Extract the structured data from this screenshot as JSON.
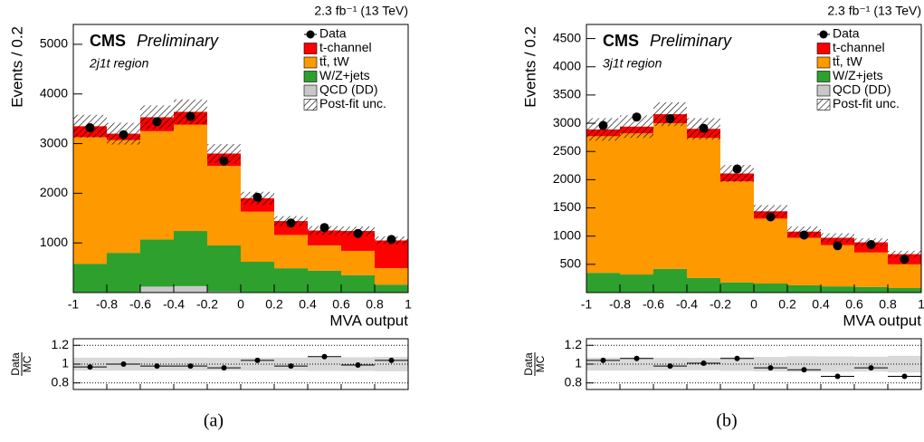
{
  "chart_data": [
    {
      "type": "histogram",
      "lumi": "2.3 fb⁻¹ (13 TeV)",
      "experiment": "CMS",
      "status": "Preliminary",
      "region": "2j1t region",
      "ylabel": "Events / 0.2",
      "xlabel": "MVA output",
      "caption": "(a)",
      "ratio_label": {
        "numerator": "Data",
        "denominator": "MC"
      },
      "bins": [
        -1,
        -0.8,
        -0.6,
        -0.4,
        -0.2,
        0,
        0.2,
        0.4,
        0.6,
        0.8,
        1
      ],
      "series": [
        {
          "name": "QCD (DD)",
          "color": "#c8c8c8",
          "values": [
            10,
            10,
            120,
            130,
            20,
            10,
            5,
            5,
            5,
            0
          ]
        },
        {
          "name": "W/Z+jets",
          "color": "#2ea02e",
          "values": [
            570,
            790,
            950,
            1110,
            930,
            610,
            485,
            435,
            345,
            160
          ]
        },
        {
          "name": "tt̄, tW",
          "color": "#ff9900",
          "values": [
            2550,
            2270,
            2180,
            2140,
            1600,
            1010,
            670,
            510,
            490,
            330
          ]
        },
        {
          "name": "t-channel",
          "color": "#ff0000",
          "values": [
            220,
            130,
            280,
            260,
            250,
            270,
            280,
            300,
            400,
            560
          ]
        }
      ],
      "uncertainty": {
        "name": "Post-fit unc.",
        "values": [
          230,
          220,
          240,
          250,
          190,
          130,
          100,
          90,
          90,
          80
        ]
      },
      "data": {
        "name": "Data",
        "color": "#000000",
        "values": [
          3320,
          3180,
          3440,
          3550,
          2650,
          1920,
          1400,
          1310,
          1190,
          1070
        ]
      },
      "ratio": [
        0.97,
        1.0,
        0.98,
        0.98,
        0.96,
        1.04,
        0.98,
        1.08,
        0.99,
        1.04
      ],
      "xlim": [
        -1,
        1
      ],
      "xticks": [
        -1,
        -0.8,
        -0.6,
        -0.4,
        -0.2,
        0,
        0.2,
        0.4,
        0.6,
        0.8,
        1
      ],
      "ylim": [
        0,
        5400
      ],
      "yticks": [
        1000,
        2000,
        3000,
        4000,
        5000
      ],
      "ratio_ylim": [
        0.73,
        1.27
      ],
      "ratio_yticks": [
        0.8,
        1,
        1.2
      ]
    },
    {
      "type": "histogram",
      "lumi": "2.3 fb⁻¹ (13 TeV)",
      "experiment": "CMS",
      "status": "Preliminary",
      "region": "3j1t region",
      "ylabel": "Events / 0.2",
      "xlabel": "MVA output",
      "caption": "(b)",
      "ratio_label": {
        "numerator": "Data",
        "denominator": "MC"
      },
      "bins": [
        -1,
        -0.8,
        -0.6,
        -0.4,
        -0.2,
        0,
        0.2,
        0.4,
        0.6,
        0.8,
        1
      ],
      "series": [
        {
          "name": "QCD (DD)",
          "color": "#c8c8c8",
          "values": [
            5,
            5,
            5,
            5,
            5,
            5,
            5,
            5,
            5,
            5
          ]
        },
        {
          "name": "W/Z+jets",
          "color": "#2ea02e",
          "values": [
            345,
            315,
            415,
            255,
            175,
            155,
            125,
            105,
            95,
            75
          ]
        },
        {
          "name": "tt̄, tW",
          "color": "#ff9900",
          "values": [
            2420,
            2500,
            2580,
            2480,
            1790,
            1150,
            840,
            730,
            610,
            420
          ]
        },
        {
          "name": "t-channel",
          "color": "#ff0000",
          "values": [
            120,
            120,
            160,
            160,
            140,
            130,
            110,
            130,
            180,
            180
          ]
        }
      ],
      "uncertainty": {
        "name": "Post-fit unc.",
        "values": [
          200,
          200,
          210,
          190,
          150,
          110,
          90,
          80,
          70,
          60
        ]
      },
      "data": {
        "name": "Data",
        "color": "#000000",
        "values": [
          2960,
          3110,
          3080,
          2910,
          2190,
          1340,
          1020,
          830,
          850,
          590
        ]
      },
      "ratio": [
        1.04,
        1.06,
        0.98,
        1.01,
        1.06,
        0.96,
        0.94,
        0.87,
        0.96,
        0.87
      ],
      "xlim": [
        -1,
        1
      ],
      "xticks": [
        -1,
        -0.8,
        -0.6,
        -0.4,
        -0.2,
        0,
        0.2,
        0.4,
        0.6,
        0.8,
        1
      ],
      "ylim": [
        0,
        4750
      ],
      "yticks": [
        500,
        1000,
        1500,
        2000,
        2500,
        3000,
        3500,
        4000,
        4500
      ],
      "ratio_ylim": [
        0.73,
        1.27
      ],
      "ratio_yticks": [
        0.8,
        1,
        1.2
      ]
    }
  ]
}
